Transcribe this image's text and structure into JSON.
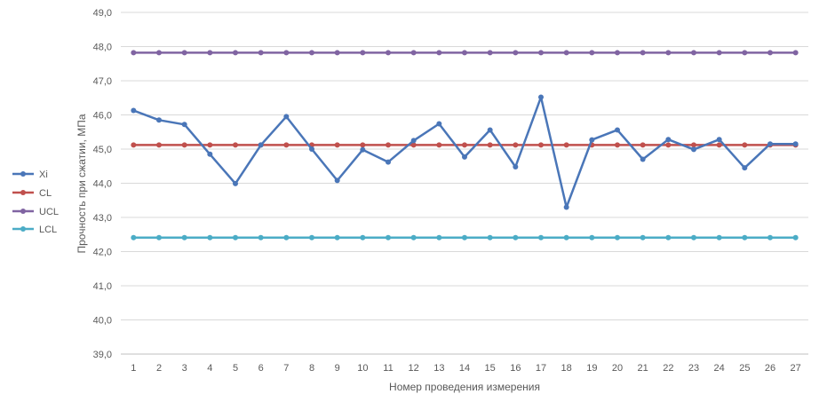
{
  "chart_data": {
    "type": "line",
    "title": "",
    "xlabel": "Номер проведения измерения",
    "ylabel": "Прочность при сжатии, МПа",
    "x": [
      1,
      2,
      3,
      4,
      5,
      6,
      7,
      8,
      9,
      10,
      11,
      12,
      13,
      14,
      15,
      16,
      17,
      18,
      19,
      20,
      21,
      22,
      23,
      24,
      25,
      26,
      27
    ],
    "y_ticks": [
      "39,0",
      "40,0",
      "41,0",
      "42,0",
      "43,0",
      "44,0",
      "45,0",
      "46,0",
      "47,0",
      "48,0",
      "49,0"
    ],
    "ylim": [
      39,
      49
    ],
    "grid": true,
    "legend_position": "left",
    "series": [
      {
        "name": "Xi",
        "color": "#4a76b8",
        "values": [
          46.13,
          45.85,
          45.72,
          44.85,
          43.99,
          45.12,
          45.95,
          45.0,
          44.08,
          44.98,
          44.62,
          45.25,
          45.74,
          44.77,
          45.56,
          44.48,
          46.52,
          43.3,
          45.27,
          45.56,
          44.7,
          45.28,
          44.99,
          45.28,
          44.45,
          45.15,
          45.15
        ]
      },
      {
        "name": "CL",
        "color": "#c0504d",
        "values": [
          45.12,
          45.12,
          45.12,
          45.12,
          45.12,
          45.12,
          45.12,
          45.12,
          45.12,
          45.12,
          45.12,
          45.12,
          45.12,
          45.12,
          45.12,
          45.12,
          45.12,
          45.12,
          45.12,
          45.12,
          45.12,
          45.12,
          45.12,
          45.12,
          45.12,
          45.12,
          45.12
        ]
      },
      {
        "name": "UCL",
        "color": "#8064a2",
        "values": [
          47.82,
          47.82,
          47.82,
          47.82,
          47.82,
          47.82,
          47.82,
          47.82,
          47.82,
          47.82,
          47.82,
          47.82,
          47.82,
          47.82,
          47.82,
          47.82,
          47.82,
          47.82,
          47.82,
          47.82,
          47.82,
          47.82,
          47.82,
          47.82,
          47.82,
          47.82,
          47.82
        ]
      },
      {
        "name": "LCL",
        "color": "#4bacc6",
        "values": [
          42.41,
          42.41,
          42.41,
          42.41,
          42.41,
          42.41,
          42.41,
          42.41,
          42.41,
          42.41,
          42.41,
          42.41,
          42.41,
          42.41,
          42.41,
          42.41,
          42.41,
          42.41,
          42.41,
          42.41,
          42.41,
          42.41,
          42.41,
          42.41,
          42.41,
          42.41,
          42.41
        ]
      }
    ]
  }
}
